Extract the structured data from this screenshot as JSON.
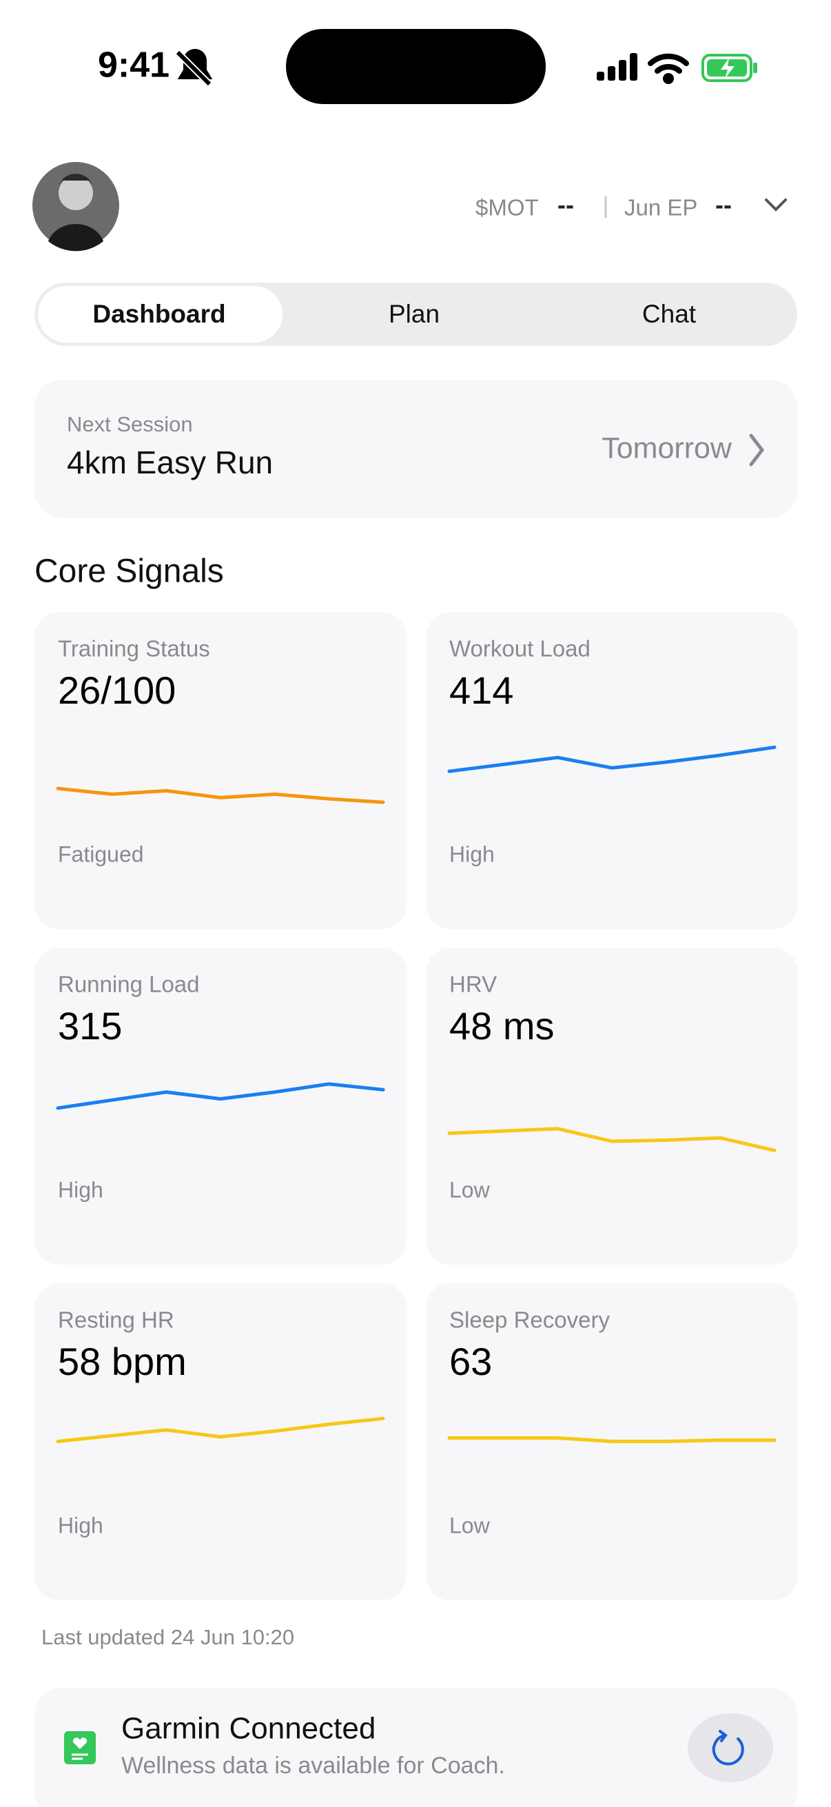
{
  "status_bar": {
    "time": "9:41"
  },
  "header": {
    "mot_label": "$MOT",
    "mot_value": "--",
    "ep_label": "Jun EP",
    "ep_value": "--"
  },
  "tabs": [
    "Dashboard",
    "Plan",
    "Chat"
  ],
  "next_session": {
    "label": "Next Session",
    "title": "4km Easy Run",
    "when": "Tomorrow"
  },
  "core_signals": {
    "title": "Core Signals",
    "trend_ylim": [
      0,
      80
    ],
    "cards": [
      {
        "label": "Training Status",
        "value": "26/100",
        "status": "Fatigued",
        "color": "#f5960f",
        "trend": [
          27,
          22,
          25,
          19,
          22,
          18,
          15
        ]
      },
      {
        "label": "Workout Load",
        "value": "414",
        "status": "High",
        "color": "#1a7ff0",
        "trend": [
          42,
          48,
          54,
          45,
          50,
          56,
          63
        ]
      },
      {
        "label": "Running Load",
        "value": "315",
        "status": "High",
        "color": "#1a7ff0",
        "trend": [
          41,
          48,
          55,
          49,
          55,
          62,
          57
        ]
      },
      {
        "label": "HRV",
        "value": "48 ms",
        "status": "Low",
        "color": "#f7c815",
        "trend": [
          19,
          21,
          23,
          12,
          13,
          15,
          4
        ]
      },
      {
        "label": "Resting HR",
        "value": "58 bpm",
        "status": "High",
        "color": "#f7c815",
        "trend": [
          43,
          48,
          53,
          47,
          52,
          58,
          63
        ]
      },
      {
        "label": "Sleep Recovery",
        "value": "63",
        "status": "Low",
        "color": "#f7c815",
        "trend": [
          46,
          46,
          46,
          43,
          43,
          44,
          44
        ]
      }
    ]
  },
  "last_updated": "Last updated 24 Jun 10:20",
  "garmin": {
    "title": "Garmin Connected",
    "subtitle": "Wellness data is available for Coach."
  }
}
